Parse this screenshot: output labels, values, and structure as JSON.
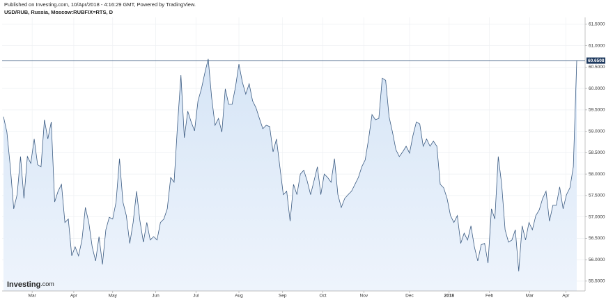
{
  "header": {
    "published": "Published on Investing.com, 10/Apr/2018 - 4:16:29 GMT, Powered by TradingView.",
    "symbol": "USD/RUB, Russia, Moscow:RUBFIX=RTS, D"
  },
  "logo": {
    "main": "Investing",
    "suffix": ".com"
  },
  "chart_data": {
    "type": "area",
    "color": "#3b5b82",
    "fill": "#dce9f8",
    "grid": true,
    "values": [
      59.34,
      58.98,
      58.17,
      57.19,
      57.52,
      58.41,
      57.43,
      58.41,
      58.25,
      58.82,
      58.22,
      58.17,
      59.27,
      58.82,
      59.22,
      57.35,
      57.6,
      57.76,
      56.87,
      56.95,
      56.09,
      56.3,
      56.09,
      56.46,
      57.22,
      56.87,
      56.3,
      55.97,
      56.54,
      55.89,
      56.7,
      56.99,
      56.95,
      57.35,
      58.36,
      57.35,
      57.03,
      56.38,
      56.87,
      57.6,
      56.9,
      56.41,
      56.87,
      56.46,
      56.54,
      56.46,
      56.87,
      56.95,
      57.19,
      57.92,
      57.81,
      59.14,
      60.31,
      58.85,
      59.47,
      59.22,
      59.01,
      59.71,
      59.99,
      60.36,
      60.69,
      59.79,
      59.14,
      59.3,
      58.98,
      59.99,
      59.63,
      59.63,
      60.04,
      60.57,
      60.15,
      59.87,
      60.11,
      59.71,
      59.55,
      59.3,
      59.06,
      59.14,
      59.11,
      58.52,
      58.82,
      58.17,
      57.52,
      57.6,
      56.9,
      57.76,
      57.52,
      58,
      58.09,
      57.84,
      57.52,
      57.84,
      58.17,
      57.52,
      58,
      57.92,
      57.81,
      58.36,
      57.52,
      57.22,
      57.43,
      57.52,
      57.6,
      57.76,
      57.92,
      58.17,
      58.33,
      58.82,
      59.39,
      59.27,
      59.3,
      60.24,
      60.19,
      59.34,
      58.98,
      58.57,
      58.41,
      58.52,
      58.65,
      58.49,
      58.9,
      59.22,
      59.17,
      58.65,
      58.82,
      58.65,
      58.77,
      58.65,
      57.76,
      57.68,
      57.43,
      57.03,
      56.87,
      57.03,
      56.38,
      56.62,
      56.46,
      56.79,
      56.3,
      55.97,
      56.35,
      56.38,
      55.92,
      57.19,
      56.95,
      58.41,
      57.76,
      56.7,
      56.41,
      56.46,
      56.7,
      55.73,
      56.79,
      56.46,
      56.87,
      56.7,
      57.03,
      57.16,
      57.43,
      57.6,
      56.9,
      57.27,
      57.27,
      57.7,
      57.19,
      57.52,
      57.68,
      58.17,
      60.6508
    ],
    "ylim": [
      55.27,
      61.66
    ],
    "yticks": [
      {
        "value": 55.5,
        "label": "55.5000"
      },
      {
        "value": 56,
        "label": "56.0000"
      },
      {
        "value": 56.5,
        "label": "56.5000"
      },
      {
        "value": 57,
        "label": "57.0000"
      },
      {
        "value": 57.5,
        "label": "57.5000"
      },
      {
        "value": 58,
        "label": "58.0000"
      },
      {
        "value": 58.5,
        "label": "58.5000"
      },
      {
        "value": 59,
        "label": "59.0000"
      },
      {
        "value": 59.5,
        "label": "59.5000"
      },
      {
        "value": 60,
        "label": "60.0000"
      },
      {
        "value": 60.5,
        "label": "60.5000"
      },
      {
        "value": 61,
        "label": "61.0000"
      },
      {
        "value": 61.5,
        "label": "61.5000"
      }
    ],
    "xticks": [
      {
        "value": 8.4,
        "label": "Mar"
      },
      {
        "value": 20.6,
        "label": "Apr"
      },
      {
        "value": 32,
        "label": "May"
      },
      {
        "value": 44.6,
        "label": "Jun"
      },
      {
        "value": 56.4,
        "label": "Jul"
      },
      {
        "value": 69,
        "label": "Aug"
      },
      {
        "value": 81.8,
        "label": "Sep"
      },
      {
        "value": 93.6,
        "label": "Oct"
      },
      {
        "value": 105.6,
        "label": "Nov"
      },
      {
        "value": 119,
        "label": "Dec"
      },
      {
        "value": 130.6,
        "label": "2018"
      },
      {
        "value": 142.4,
        "label": "Feb"
      },
      {
        "value": 154.2,
        "label": "Mar"
      },
      {
        "value": 164.8,
        "label": "Apr"
      }
    ]
  }
}
